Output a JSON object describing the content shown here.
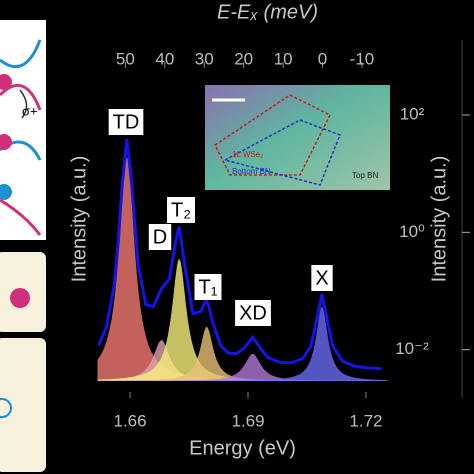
{
  "chart_data": [
    {
      "type": "line",
      "xlabel": "Energy (eV)",
      "ylabel": "Intensity (a.u.)",
      "x2label": "E-Eₓ (meV)",
      "xlim": [
        1.6516,
        1.7256
      ],
      "xticks": [
        1.66,
        1.69,
        1.72
      ],
      "x2lim": [
        57.2,
        -16.6
      ],
      "x2ticks": [
        50,
        40,
        30,
        20,
        10,
        0,
        -10
      ],
      "ylim": [
        -0.05,
        1.0
      ],
      "x": [
        1.652,
        1.654,
        1.656,
        1.657,
        1.658,
        1.6592,
        1.6605,
        1.662,
        1.664,
        1.666,
        1.668,
        1.67,
        1.6715,
        1.6725,
        1.674,
        1.676,
        1.678,
        1.6795,
        1.681,
        1.683,
        1.685,
        1.687,
        1.689,
        1.6912,
        1.693,
        1.695,
        1.698,
        1.701,
        1.704,
        1.706,
        1.7075,
        1.7088,
        1.71,
        1.7115,
        1.714,
        1.717,
        1.72,
        1.724
      ],
      "series": [
        {
          "color": "#1414e6",
          "values": [
            0.105,
            0.158,
            0.281,
            0.405,
            0.577,
            0.71,
            0.568,
            0.346,
            0.224,
            0.218,
            0.271,
            0.299,
            0.404,
            0.453,
            0.332,
            0.197,
            0.204,
            0.241,
            0.174,
            0.104,
            0.082,
            0.08,
            0.096,
            0.128,
            0.099,
            0.069,
            0.055,
            0.053,
            0.066,
            0.102,
            0.181,
            0.255,
            0.187,
            0.103,
            0.058,
            0.044,
            0.039,
            0.036
          ]
        }
      ],
      "fits": [
        {
          "label": "TD",
          "center": 1.6592,
          "height": 0.66,
          "width": 0.0024,
          "color": "#f47a74"
        },
        {
          "label": "D",
          "center": 1.668,
          "height": 0.12,
          "width": 0.0025,
          "color": "#e0a0b0"
        },
        {
          "label": "T₂",
          "center": 1.6725,
          "height": 0.36,
          "width": 0.0022,
          "color": "#f6f07a"
        },
        {
          "label": "T₁",
          "center": 1.6795,
          "height": 0.16,
          "width": 0.002,
          "color": "#eac078"
        },
        {
          "label": "XD",
          "center": 1.6912,
          "height": 0.08,
          "width": 0.0025,
          "color": "#b277d6"
        },
        {
          "label": "X",
          "center": 1.7088,
          "height": 0.22,
          "width": 0.0018,
          "color": "#6a6af2"
        }
      ]
    },
    {
      "type": "log-axis",
      "ylabel": "Intensity (a.u.)",
      "yscale": "log",
      "ylim": [
        0.0015,
        1900
      ],
      "yticks": [
        {
          "value": 100,
          "label": "10²"
        },
        {
          "value": 1,
          "label": "10⁰"
        },
        {
          "value": 0.01,
          "label": "10⁻²"
        }
      ]
    }
  ],
  "inset": {
    "labels": [
      "1L WSe₂",
      "Bottom BN",
      "Top BN"
    ]
  },
  "left_panel": {
    "label": "σ+"
  }
}
